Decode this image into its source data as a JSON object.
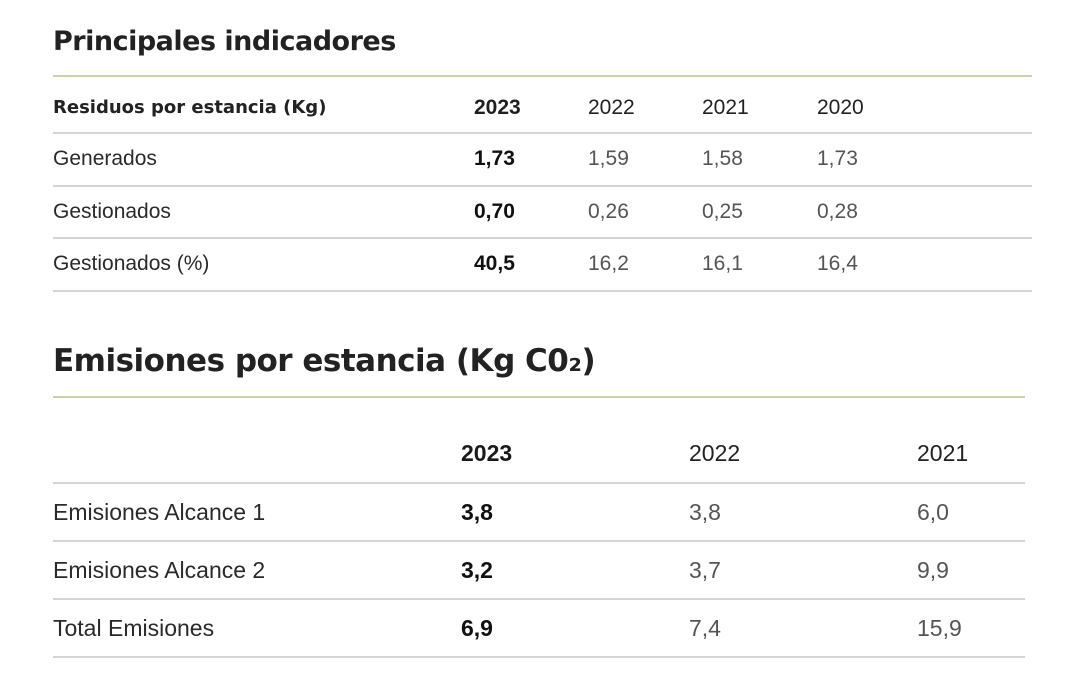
{
  "table1": {
    "title": "Principales indicadores",
    "header": {
      "label": "Residuos por estancia (Kg)",
      "years": [
        "2023",
        "2022",
        "2021",
        "2020"
      ]
    },
    "rows": [
      {
        "label": "Generados",
        "values": [
          "1,73",
          "1,59",
          "1,58",
          "1,73"
        ]
      },
      {
        "label": "Gestionados",
        "values": [
          "0,70",
          "0,26",
          "0,25",
          "0,28"
        ]
      },
      {
        "label": "Gestionados (%)",
        "values": [
          "40,5",
          "16,2",
          "16,1",
          "16,4"
        ]
      }
    ]
  },
  "table2": {
    "title": "Emisiones por estancia (Kg C0₂)",
    "header": {
      "label": "",
      "years": [
        "2023",
        "2022",
        "2021"
      ]
    },
    "rows": [
      {
        "label": "Emisiones Alcance 1",
        "values": [
          "3,8",
          "3,8",
          "6,0"
        ]
      },
      {
        "label": "Emisiones Alcance 2",
        "values": [
          "3,2",
          "3,7",
          "9,9"
        ]
      },
      {
        "label": "Total Emisiones",
        "values": [
          "6,9",
          "7,4",
          "15,9"
        ]
      }
    ]
  }
}
